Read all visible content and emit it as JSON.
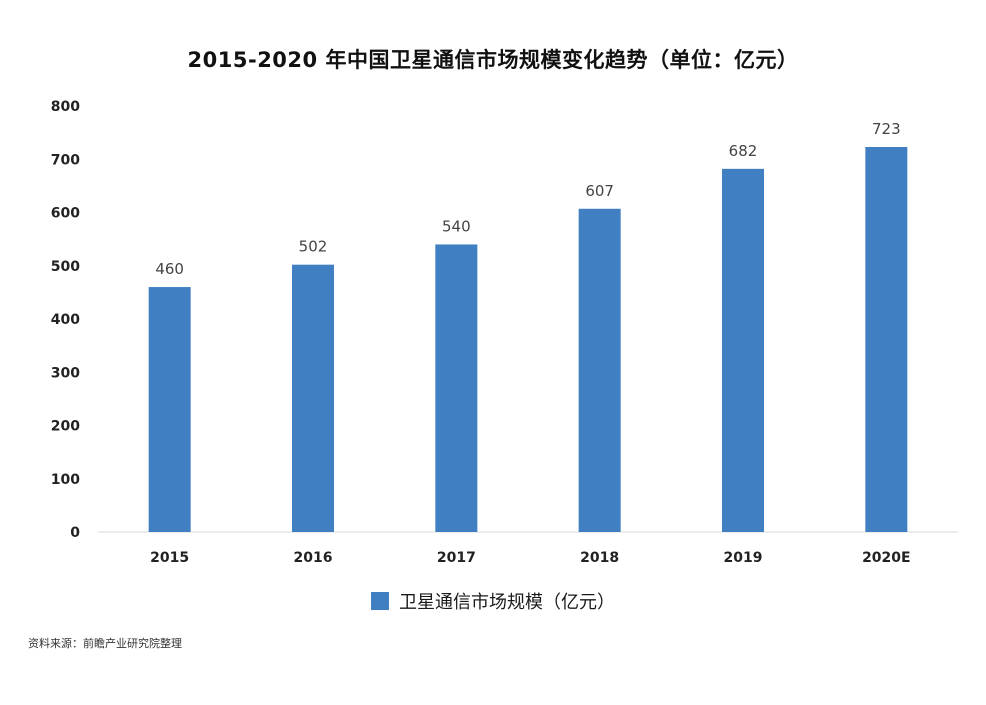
{
  "chart_data": {
    "type": "bar",
    "title": "2015-2020 年中国卫星通信市场规模变化趋势（单位：亿元）",
    "categories": [
      "2015",
      "2016",
      "2017",
      "2018",
      "2019",
      "2020E"
    ],
    "series": [
      {
        "name": "卫星通信市场规模（亿元）",
        "values": [
          460,
          502,
          540,
          607,
          682,
          723
        ],
        "color": "#3f7fc2"
      }
    ],
    "ylim": [
      0,
      800
    ],
    "yticks": [
      "0",
      "100",
      "200",
      "300",
      "400",
      "500",
      "600",
      "700",
      "800"
    ],
    "grid": false,
    "legend_position": "bottom-center",
    "xlabel": "",
    "ylabel": ""
  },
  "source_note": "资料来源：前瞻产业研究院整理"
}
